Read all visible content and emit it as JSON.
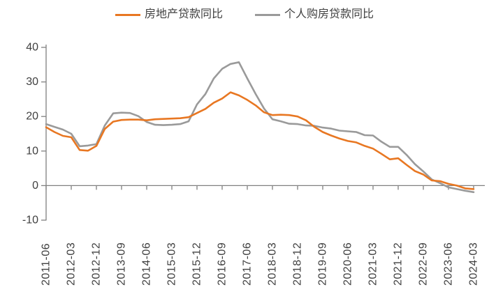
{
  "page": {
    "background": "#ffffff",
    "text_color": "#404040",
    "axis_color": "#808080"
  },
  "legend": {
    "items": [
      {
        "id": "real-estate-loans",
        "label": "房地产贷款同比",
        "color": "#E87722"
      },
      {
        "id": "personal-housing-loans",
        "label": "个人购房贷款同比",
        "color": "#9A9A9A"
      }
    ]
  },
  "chart_data": {
    "type": "line",
    "title": "",
    "xlabel": "",
    "ylabel": "",
    "grid": false,
    "legend_position": "top",
    "ylim": [
      -10,
      40
    ],
    "y_ticks": [
      40,
      30,
      20,
      10,
      0,
      -10
    ],
    "x_tick_every": 3,
    "x_tick_labels": [
      "2011-06",
      "2012-03",
      "2012-12",
      "2013-09",
      "2014-06",
      "2015-03",
      "2015-12",
      "2016-09",
      "2017-06",
      "2018-03",
      "2018-12",
      "2019-09",
      "2020-06",
      "2021-03",
      "2021-12",
      "2022-09",
      "2023-06",
      "2024-03"
    ],
    "x": [
      "2011-06",
      "2011-09",
      "2011-12",
      "2012-03",
      "2012-06",
      "2012-09",
      "2012-12",
      "2013-03",
      "2013-06",
      "2013-09",
      "2013-12",
      "2014-03",
      "2014-06",
      "2014-09",
      "2014-12",
      "2015-03",
      "2015-06",
      "2015-09",
      "2015-12",
      "2016-03",
      "2016-06",
      "2016-09",
      "2016-12",
      "2017-03",
      "2017-06",
      "2017-09",
      "2017-12",
      "2018-03",
      "2018-06",
      "2018-09",
      "2018-12",
      "2019-03",
      "2019-06",
      "2019-09",
      "2019-12",
      "2020-03",
      "2020-06",
      "2020-09",
      "2020-12",
      "2021-03",
      "2021-06",
      "2021-09",
      "2021-12",
      "2022-03",
      "2022-06",
      "2022-09",
      "2022-12",
      "2023-03",
      "2023-06",
      "2023-09",
      "2023-12",
      "2024-03"
    ],
    "series": [
      {
        "name": "房地产贷款同比",
        "color": "#E87722",
        "values": [
          16.9,
          15.5,
          14.4,
          14.0,
          10.3,
          10.1,
          11.5,
          16.4,
          18.5,
          19.0,
          19.1,
          19.1,
          18.9,
          19.2,
          19.3,
          19.4,
          19.5,
          19.8,
          21.0,
          22.2,
          24.0,
          25.2,
          27.0,
          26.1,
          24.8,
          23.2,
          21.2,
          20.4,
          20.5,
          20.4,
          20.0,
          18.9,
          17.0,
          15.5,
          14.5,
          13.6,
          12.9,
          12.5,
          11.5,
          10.7,
          9.2,
          7.6,
          7.9,
          6.0,
          4.2,
          3.2,
          1.5,
          1.3,
          0.5,
          0.0,
          -0.8,
          -1.0
        ]
      },
      {
        "name": "个人购房贷款同比",
        "color": "#9A9A9A",
        "values": [
          17.8,
          17.0,
          16.2,
          15.0,
          11.4,
          11.6,
          12.0,
          17.4,
          20.9,
          21.1,
          21.0,
          20.1,
          18.4,
          17.6,
          17.5,
          17.6,
          17.8,
          18.6,
          23.5,
          26.5,
          31.0,
          33.8,
          35.2,
          35.7,
          31.0,
          26.5,
          22.3,
          19.2,
          18.6,
          17.9,
          17.8,
          17.4,
          17.3,
          16.8,
          16.5,
          15.9,
          15.7,
          15.5,
          14.6,
          14.5,
          12.7,
          11.2,
          11.2,
          8.9,
          6.2,
          4.1,
          1.8,
          0.7,
          -0.5,
          -1.0,
          -1.5,
          -1.9
        ]
      }
    ]
  }
}
